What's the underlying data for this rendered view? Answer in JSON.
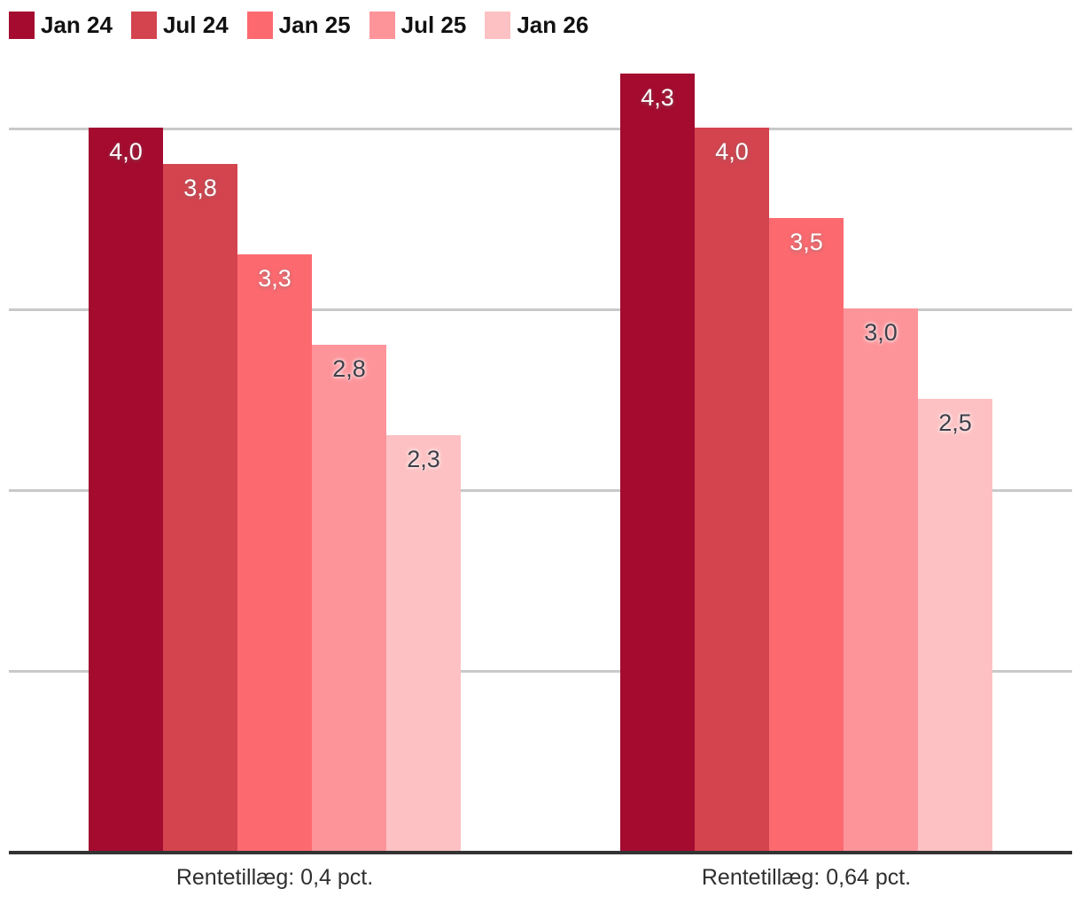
{
  "colors": {
    "grid": "#c9c9c9",
    "axis": "#333333",
    "caption_text": "#2f2f2f",
    "legend_text": "#111111",
    "value_label_light": "#ffffff",
    "value_label_dark": "#3f3f48"
  },
  "legend": {
    "items": [
      {
        "label": "Jan 24",
        "color": "#a40b2f"
      },
      {
        "label": "Jul 24",
        "color": "#d4444f"
      },
      {
        "label": "Jan 25",
        "color": "#fc6a70"
      },
      {
        "label": "Jul 25",
        "color": "#fc949a"
      },
      {
        "label": "Jan 26",
        "color": "#fdc1c3"
      }
    ]
  },
  "chart_data": {
    "type": "bar",
    "title": "",
    "xlabel": "",
    "ylabel": "",
    "grid": true,
    "legend_position": "top-left",
    "ylim": [
      0,
      4.5
    ],
    "gridline_values": [
      1,
      2,
      3,
      4
    ],
    "series_labels": [
      "Jan 24",
      "Jul 24",
      "Jan 25",
      "Jul 25",
      "Jan 26"
    ],
    "series_colors": [
      "#a40b2f",
      "#d4444f",
      "#fc6a70",
      "#fc949a",
      "#fdc1c3"
    ],
    "series_label_style": [
      "light",
      "light",
      "light",
      "dark",
      "dark"
    ],
    "groups": [
      {
        "caption": "Rentetillæg: 0,4 pct.",
        "values": [
          4.0,
          3.8,
          3.3,
          2.8,
          2.3
        ],
        "value_labels": [
          "4,0",
          "3,8",
          "3,3",
          "2,8",
          "2,3"
        ]
      },
      {
        "caption": "Rentetillæg: 0,64 pct.",
        "values": [
          4.3,
          4.0,
          3.5,
          3.0,
          2.5
        ],
        "value_labels": [
          "4,3",
          "4,0",
          "3,5",
          "3,0",
          "2,5"
        ]
      }
    ]
  }
}
